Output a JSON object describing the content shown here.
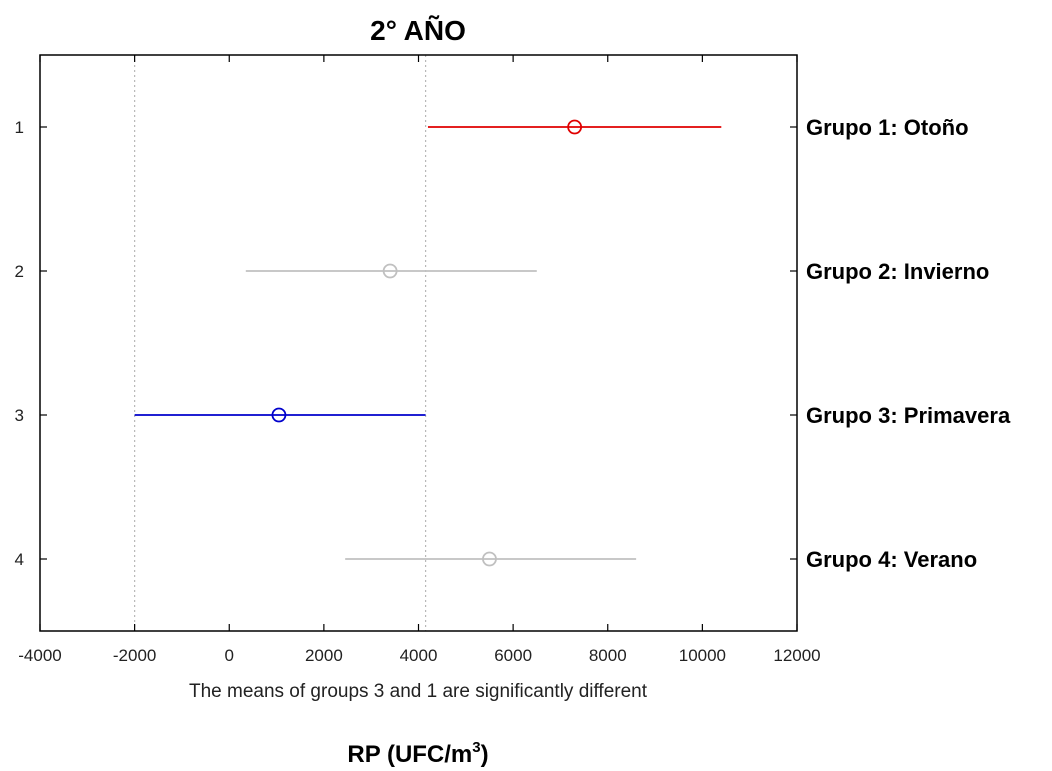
{
  "chart_data": {
    "type": "scatter",
    "subtype": "multiple-comparison-intervals",
    "title": "2° AÑO",
    "note": "The means of groups 3 and 1 are significantly different",
    "xlabel": {
      "main": "RP (UFC/m",
      "sup": "3",
      "close": ")"
    },
    "xlim": [
      -4000,
      12000
    ],
    "xticks": [
      -4000,
      -2000,
      0,
      2000,
      4000,
      6000,
      8000,
      10000,
      12000
    ],
    "xtick_labels": [
      "-4000",
      "-2000",
      "0",
      "2000",
      "4000",
      "6000",
      "8000",
      "10000",
      "12000"
    ],
    "ylim": [
      0.5,
      4.5
    ],
    "yticks": [
      1,
      2,
      3,
      4
    ],
    "ytick_labels": [
      "1",
      "2",
      "3",
      "4"
    ],
    "reference_lines": [
      -2000,
      4150
    ],
    "grid": false,
    "groups": [
      {
        "label": "Grupo 1: Otoño",
        "mean": 7300,
        "lower": 4200,
        "upper": 10400,
        "color": "#e00000"
      },
      {
        "label": "Grupo 2: Invierno",
        "mean": 3400,
        "lower": 350,
        "upper": 6500,
        "color": "#c0c0c0"
      },
      {
        "label": "Grupo 3: Primavera",
        "mean": 1050,
        "lower": -2000,
        "upper": 4150,
        "color": "#0000cc"
      },
      {
        "label": "Grupo 4: Verano",
        "mean": 5500,
        "lower": 2450,
        "upper": 8600,
        "color": "#c0c0c0"
      }
    ]
  }
}
